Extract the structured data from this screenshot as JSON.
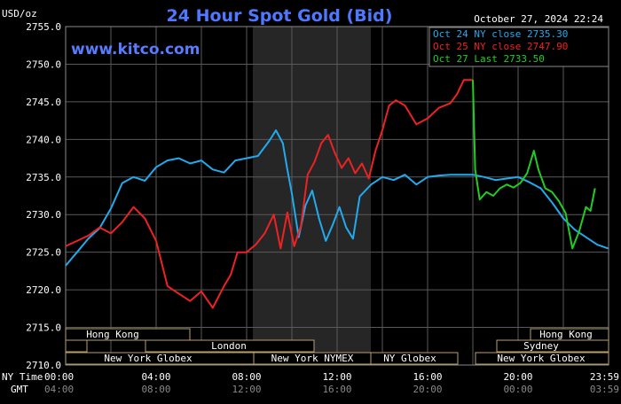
{
  "chart_data": {
    "type": "line",
    "title": "24 Hour Spot Gold (Bid)",
    "watermark": "www.kitco.com",
    "unit_label": "USD/oz",
    "timestamp": "October 27, 2024 22:24",
    "ylim": [
      2710,
      2755
    ],
    "y_ticks": [
      "2755.0",
      "2750.0",
      "2745.0",
      "2740.0",
      "2735.0",
      "2730.0",
      "2725.0",
      "2720.0",
      "2715.0",
      "2710.0"
    ],
    "x_row_labels": {
      "ny": "NY Time",
      "gmt": "GMT"
    },
    "x_ticks_ny": [
      "00:00",
      "04:00",
      "08:00",
      "12:00",
      "16:00",
      "20:00",
      "23:59"
    ],
    "x_ticks_gmt": [
      "04:00",
      "08:00",
      "12:00",
      "16:00",
      "20:00",
      "00:00",
      "03:59"
    ],
    "sessions": {
      "hong_kong_left": "Hong Kong",
      "london": "London",
      "ny_globex_left": "New York Globex",
      "ny_nymex": "New York NYMEX",
      "ny_globex_mid": "NY Globex",
      "hong_kong_right": "Hong Kong",
      "sydney": "Sydney",
      "ny_globex_right": "New York Globex"
    },
    "legend": [
      {
        "label": "Oct 24 NY close 2735.30",
        "color": "#22aaee"
      },
      {
        "label": "Oct 25 NY close 2747.90",
        "color": "#ee2222"
      },
      {
        "label": "Oct 27 Last 2733.50",
        "color": "#22cc22"
      }
    ],
    "series": [
      {
        "name": "Oct 24",
        "color": "#22aaee",
        "x": [
          0,
          0.5,
          1,
          1.5,
          2,
          2.5,
          3,
          3.5,
          4,
          4.5,
          5,
          5.5,
          6,
          6.5,
          7,
          7.5,
          8,
          8.5,
          9,
          9.3,
          9.6,
          9.8,
          10,
          10.3,
          10.6,
          10.9,
          11.2,
          11.5,
          11.8,
          12.1,
          12.4,
          12.7,
          13,
          13.5,
          14,
          14.5,
          15,
          15.5,
          16,
          16.5,
          17,
          17.5,
          18,
          18.5,
          19,
          19.5,
          20,
          20.5,
          21,
          21.5,
          22,
          22.5,
          23,
          23.5,
          23.98
        ],
        "values": [
          2723.2,
          2725.0,
          2726.8,
          2728.2,
          2730.8,
          2734.2,
          2735.0,
          2734.5,
          2736.3,
          2737.2,
          2737.5,
          2736.8,
          2737.2,
          2736.0,
          2735.6,
          2737.2,
          2737.5,
          2737.8,
          2739.8,
          2741.2,
          2739.5,
          2736.0,
          2732.8,
          2727.0,
          2731.2,
          2733.2,
          2729.5,
          2726.5,
          2728.6,
          2731.0,
          2728.3,
          2726.8,
          2732.4,
          2734.0,
          2735.0,
          2734.6,
          2735.3,
          2734.0,
          2735.0,
          2735.2,
          2735.3,
          2735.3,
          2735.3,
          2735.0,
          2734.6,
          2734.8,
          2735.0,
          2734.3,
          2733.5,
          2731.6,
          2729.5,
          2728.0,
          2727.0,
          2726.0,
          2725.5
        ]
      },
      {
        "name": "Oct 25",
        "color": "#ee2222",
        "x": [
          0,
          0.5,
          1,
          1.5,
          2,
          2.5,
          3,
          3.5,
          4,
          4.5,
          5,
          5.5,
          6,
          6.5,
          7,
          7.3,
          7.6,
          8,
          8.4,
          8.8,
          9.2,
          9.5,
          9.8,
          10.1,
          10.4,
          10.7,
          11,
          11.3,
          11.6,
          11.9,
          12.2,
          12.5,
          12.8,
          13.1,
          13.4,
          13.7,
          14,
          14.3,
          14.6,
          15,
          15.5,
          16,
          16.5,
          17,
          17.3,
          17.6,
          18
        ],
        "values": [
          2725.8,
          2726.5,
          2727.2,
          2728.3,
          2727.5,
          2729.0,
          2731.0,
          2729.5,
          2726.5,
          2720.5,
          2719.5,
          2718.5,
          2719.8,
          2717.6,
          2720.5,
          2722.0,
          2725.0,
          2725.0,
          2726.0,
          2727.5,
          2730.0,
          2725.5,
          2730.3,
          2725.8,
          2728.5,
          2735.3,
          2737.0,
          2739.5,
          2740.6,
          2738.2,
          2736.2,
          2737.5,
          2735.5,
          2736.8,
          2734.8,
          2738.5,
          2741.2,
          2744.5,
          2745.2,
          2744.5,
          2742.0,
          2742.8,
          2744.2,
          2744.8,
          2746.0,
          2747.9,
          2747.9
        ]
      },
      {
        "name": "Oct 27",
        "color": "#22cc22",
        "x": [
          18,
          18.1,
          18.3,
          18.6,
          18.9,
          19.2,
          19.5,
          19.8,
          20.1,
          20.4,
          20.7,
          20.9,
          21.2,
          21.5,
          21.8,
          22.1,
          22.4,
          22.7,
          23.0,
          23.2,
          23.4
        ],
        "values": [
          2747.9,
          2736.0,
          2732.0,
          2733.0,
          2732.5,
          2733.5,
          2734.0,
          2733.6,
          2734.2,
          2735.5,
          2738.5,
          2736.0,
          2733.5,
          2733.0,
          2731.8,
          2730.2,
          2725.5,
          2727.8,
          2731.0,
          2730.5,
          2733.5
        ]
      }
    ]
  }
}
